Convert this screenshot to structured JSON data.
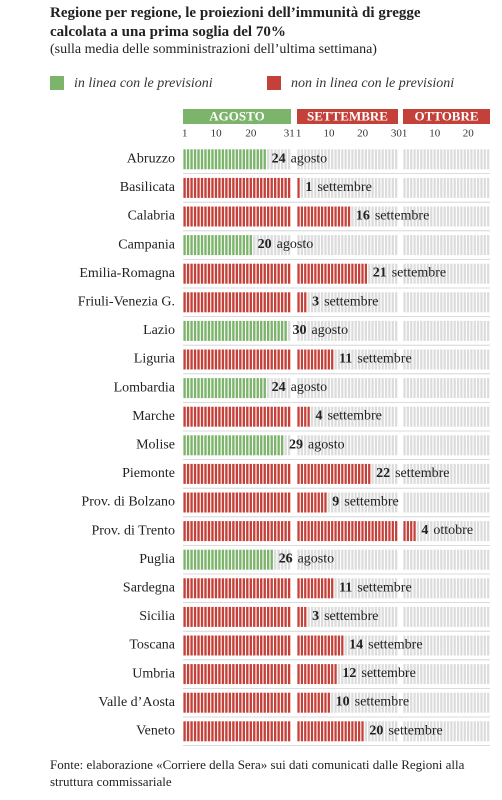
{
  "chart_data": {
    "type": "bar",
    "title": "Regione per regione, le proiezioni dell’immunità di gregge calcolata a una prima soglia del 70%",
    "subtitle": "(sulla media delle somministrazioni dell’ultima settimana)",
    "source": "Fonte: elaborazione «Corriere della Sera» sui dati comunicati dalle Regioni alla struttura commissariale",
    "legend": [
      {
        "name": "in linea con le previsioni",
        "color": "#7cb46b"
      },
      {
        "name": "non in linea con le previsioni",
        "color": "#c4413a"
      }
    ],
    "empty_color": "#dcdcdc",
    "months_axis": [
      {
        "label": "AGOSTO",
        "color": "#7cb46b",
        "xlim": [
          1,
          31
        ],
        "xticks": [
          1,
          10,
          20,
          31
        ]
      },
      {
        "label": "SETTEMBRE",
        "color": "#c4413a",
        "xlim": [
          1,
          30
        ],
        "xticks": [
          1,
          10,
          20,
          30
        ]
      },
      {
        "label": "OTTOBRE",
        "color": "#c4413a",
        "xlim": [
          1,
          26
        ],
        "xticks": [
          1,
          10,
          20
        ]
      }
    ],
    "categories": [
      "Abruzzo",
      "Basilicata",
      "Calabria",
      "Campania",
      "Emilia-Romagna",
      "Friuli-Venezia G.",
      "Lazio",
      "Liguria",
      "Lombardia",
      "Marche",
      "Molise",
      "Piemonte",
      "Prov. di Bolzano",
      "Prov. di Trento",
      "Puglia",
      "Sardegna",
      "Sicilia",
      "Toscana",
      "Umbria",
      "Valle d’Aosta",
      "Veneto"
    ],
    "days": [
      24,
      1,
      16,
      20,
      21,
      3,
      30,
      11,
      24,
      4,
      29,
      22,
      9,
      4,
      26,
      11,
      3,
      14,
      12,
      10,
      20
    ],
    "months": [
      "agosto",
      "settembre",
      "settembre",
      "agosto",
      "settembre",
      "settembre",
      "agosto",
      "settembre",
      "agosto",
      "settembre",
      "agosto",
      "settembre",
      "settembre",
      "ottobre",
      "agosto",
      "settembre",
      "settembre",
      "settembre",
      "settembre",
      "settembre",
      "settembre"
    ],
    "in_line": [
      true,
      false,
      false,
      true,
      false,
      false,
      true,
      false,
      true,
      false,
      true,
      false,
      false,
      false,
      true,
      false,
      false,
      false,
      false,
      false,
      false
    ]
  }
}
